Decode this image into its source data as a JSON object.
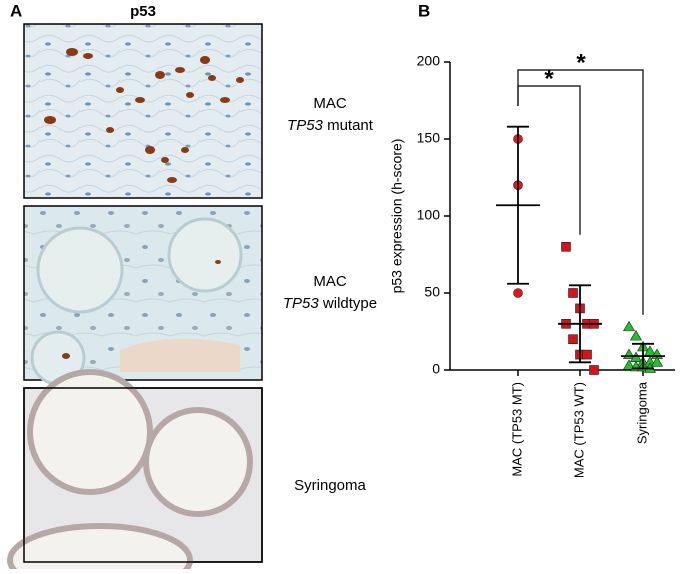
{
  "panel_a": {
    "label": "A",
    "title": "p53",
    "rows": [
      {
        "line1": "MAC",
        "gene": "TP53",
        "line2": "mutant"
      },
      {
        "line1": "MAC",
        "gene": "TP53",
        "line2": "wildtype"
      },
      {
        "line1": "Syringoma"
      }
    ]
  },
  "chart_data": {
    "type": "dot",
    "panel_label": "B",
    "y_label": "p53 expression (h-score)",
    "categories": [
      "MAC (TP53 MT)",
      "MAC (TP53 WT)",
      "Syringoma"
    ],
    "points": [
      [
        150,
        120,
        50
      ],
      [
        80,
        50,
        40,
        30,
        30,
        30,
        20,
        10,
        10,
        0
      ],
      [
        28,
        22,
        15,
        12,
        10,
        10,
        8,
        5,
        5,
        5,
        3,
        2,
        2,
        1
      ]
    ],
    "means": [
      107,
      30,
      9
    ],
    "sds": [
      51,
      25,
      8
    ],
    "colors": [
      "#e8141c",
      "#d4141c",
      "#22c02a"
    ],
    "markers": [
      "circle",
      "square",
      "triangle"
    ],
    "ylim": [
      0,
      200
    ],
    "yticks": [
      0,
      50,
      100,
      150,
      200
    ],
    "significance": [
      "*",
      "*"
    ]
  }
}
